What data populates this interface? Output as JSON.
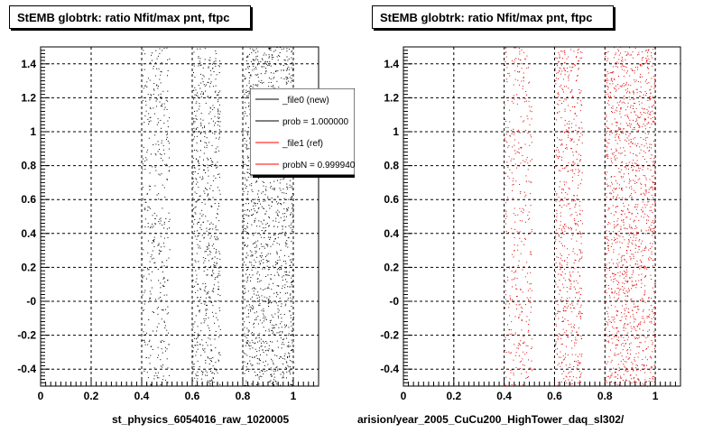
{
  "chart_data": [
    {
      "type": "scatter",
      "title": "StEMB globtrk: ratio Nfit/max pnt, ftpc",
      "xlabel": "st_physics_6054016_raw_1020005",
      "ylabel": "",
      "xlim": [
        0,
        1.1
      ],
      "ylim": [
        -0.5,
        1.5
      ],
      "xticks": [
        "0",
        "0.2",
        "0.4",
        "0.6",
        "0.8",
        "1"
      ],
      "yticks": [
        "-0.4",
        "-0.2",
        "-0",
        "0.2",
        "0.4",
        "0.6",
        "0.8",
        "1",
        "1.2",
        "1.4"
      ],
      "grid": true,
      "marker_color": "#000000",
      "bands": [
        {
          "xmin": 0.4,
          "xmax": 0.51,
          "density": 0.5
        },
        {
          "xmin": 0.6,
          "xmax": 0.71,
          "density": 0.8
        },
        {
          "xmin": 0.8,
          "xmax": 1.0,
          "density": 1.0
        }
      ],
      "legend": {
        "position": "top-right",
        "entries": [
          {
            "label": "_file0 (new)",
            "color": "#000000"
          },
          {
            "label": "prob = 1.000000",
            "color": "#000000"
          },
          {
            "label": "_file1 (ref)",
            "color": "#ff0000"
          },
          {
            "label": "probN = 0.999940",
            "color": "#ff0000"
          }
        ]
      }
    },
    {
      "type": "scatter",
      "title": "StEMB globtrk: ratio Nfit/max pnt, ftpc",
      "xlabel": "arision/year_2005_CuCu200_HighTower_daq_sl302/",
      "ylabel": "",
      "xlim": [
        0,
        1.1
      ],
      "ylim": [
        -0.5,
        1.5
      ],
      "xticks": [
        "0",
        "0.2",
        "0.4",
        "0.6",
        "0.8",
        "1"
      ],
      "yticks": [
        "-0.4",
        "-0.2",
        "-0",
        "0.2",
        "0.4",
        "0.6",
        "0.8",
        "1",
        "1.2",
        "1.4"
      ],
      "grid": true,
      "marker_color": "#dd0000",
      "bands": [
        {
          "xmin": 0.4,
          "xmax": 0.51,
          "density": 0.5
        },
        {
          "xmin": 0.6,
          "xmax": 0.71,
          "density": 0.8
        },
        {
          "xmin": 0.8,
          "xmax": 1.0,
          "density": 1.0
        }
      ]
    }
  ]
}
